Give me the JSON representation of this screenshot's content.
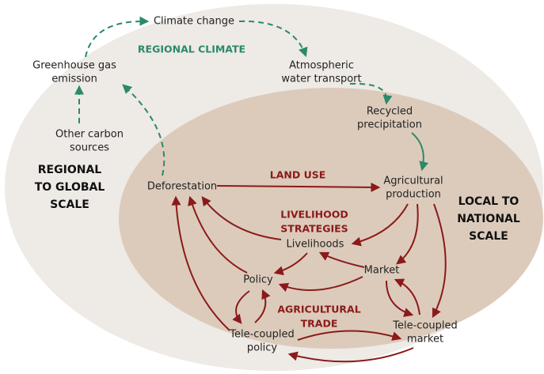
{
  "nodes": [
    {
      "id": "climate",
      "lines": [
        "Climate change"
      ]
    },
    {
      "id": "ghg",
      "lines": [
        "Greenhouse gas",
        "emission"
      ]
    },
    {
      "id": "atmo",
      "lines": [
        "Atmospheric",
        "water transport"
      ]
    },
    {
      "id": "recycled",
      "lines": [
        "Recycled",
        "precipitation"
      ]
    },
    {
      "id": "othercarbon",
      "lines": [
        "Other carbon",
        "sources"
      ]
    },
    {
      "id": "deforestation",
      "lines": [
        "Deforestation"
      ]
    },
    {
      "id": "agri",
      "lines": [
        "Agricultural",
        "production"
      ]
    },
    {
      "id": "livelihoods",
      "lines": [
        "Livelihoods"
      ]
    },
    {
      "id": "market",
      "lines": [
        "Market"
      ]
    },
    {
      "id": "policy",
      "lines": [
        "Policy"
      ]
    },
    {
      "id": "tcmarket",
      "lines": [
        "Tele-coupled",
        "market"
      ]
    },
    {
      "id": "tcpolicy",
      "lines": [
        "Tele-coupled",
        "policy"
      ]
    }
  ],
  "themes": [
    {
      "id": "climate",
      "lines": [
        "REGIONAL CLIMATE"
      ]
    },
    {
      "id": "landuse",
      "lines": [
        "LAND USE"
      ]
    },
    {
      "id": "livelihood",
      "lines": [
        "LIVELIHOOD",
        "STRATEGIES"
      ]
    },
    {
      "id": "trade",
      "lines": [
        "AGRICULTURAL",
        "TRADE"
      ]
    }
  ],
  "scales": [
    {
      "id": "global",
      "lines": [
        "REGIONAL",
        "TO GLOBAL",
        "SCALE"
      ]
    },
    {
      "id": "local",
      "lines": [
        "LOCAL TO",
        "NATIONAL",
        "SCALE"
      ]
    }
  ]
}
